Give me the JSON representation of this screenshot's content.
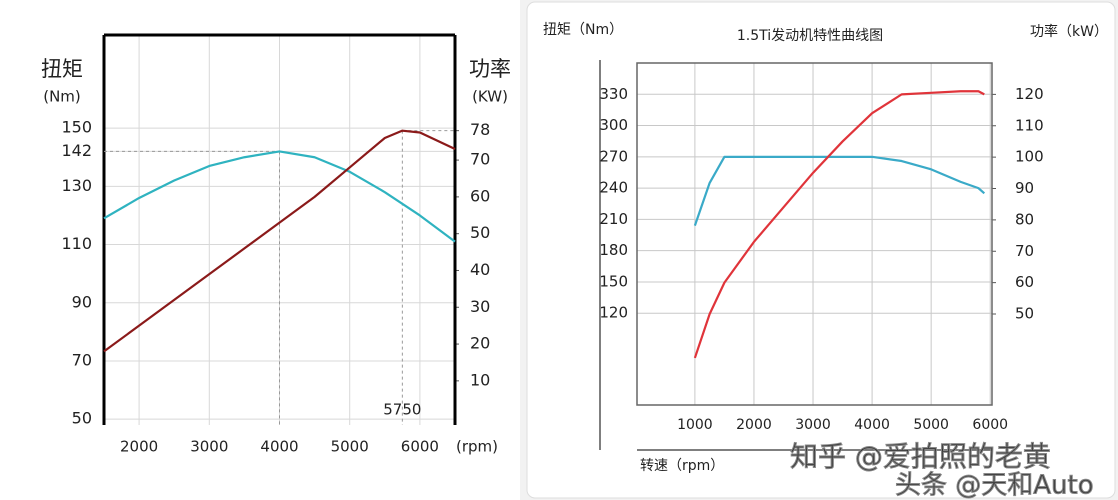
{
  "chart_data": [
    {
      "type": "line",
      "ylabel": "扭矩",
      "yunit": "(Nm)",
      "y2label": "功率",
      "y2unit": "(KW)",
      "xlabel": "(rpm)",
      "annotation": 5750,
      "x": [
        1500,
        2000,
        2500,
        3000,
        3500,
        4000,
        4500,
        5000,
        5500,
        5750,
        6000,
        6500
      ],
      "series": [
        {
          "color": "#2fb3c0",
          "values": [
            119,
            126,
            132,
            137,
            140,
            142,
            140,
            135,
            128,
            124,
            120,
            111
          ]
        },
        {
          "color": "#8b1a1a",
          "axis": "y2",
          "values": [
            18,
            25,
            32,
            39,
            46,
            53,
            60,
            68,
            76,
            78,
            77.5,
            73
          ]
        }
      ],
      "xlim": [
        1500,
        6500
      ],
      "xticks": [
        2000,
        3000,
        4000,
        5000,
        6000
      ],
      "ylim": [
        48,
        182
      ],
      "yticks": [
        50,
        70,
        90,
        110,
        130,
        142,
        150
      ],
      "y2lim": [
        -2,
        104
      ],
      "y2ticks": [
        10,
        20,
        30,
        40,
        50,
        60,
        70,
        78
      ],
      "grid": true
    },
    {
      "type": "line",
      "title": "1.5Ti发动机特性曲线图",
      "ylabel": "扭矩（Nm）",
      "y2label": "功率（kW）",
      "xlabel": "转速（rpm）",
      "x": [
        1000,
        1250,
        1500,
        2000,
        2500,
        3000,
        3500,
        4000,
        4500,
        5000,
        5500,
        5800,
        5900
      ],
      "series": [
        {
          "color": "#3aaac8",
          "values": [
            204,
            245,
            270,
            270,
            270,
            270,
            270,
            270,
            266,
            258,
            246,
            240,
            235
          ]
        },
        {
          "color": "#e0343a",
          "axis": "y2",
          "values": [
            36,
            50,
            60,
            73,
            84,
            95,
            105,
            114,
            120,
            120.5,
            121,
            121,
            120
          ]
        }
      ],
      "xlim": [
        20,
        6030
      ],
      "xticks": [
        1000,
        2000,
        3000,
        4000,
        5000,
        6000
      ],
      "ylim": [
        32,
        360
      ],
      "yticks": [
        120,
        150,
        180,
        210,
        240,
        270,
        300,
        330
      ],
      "y2lim": [
        21,
        130
      ],
      "y2ticks": [
        50,
        60,
        70,
        80,
        90,
        100,
        110,
        120
      ],
      "grid": true
    }
  ],
  "watermarks": [
    "知乎 @爱拍照的老黄",
    "头条 @天和Auto"
  ]
}
